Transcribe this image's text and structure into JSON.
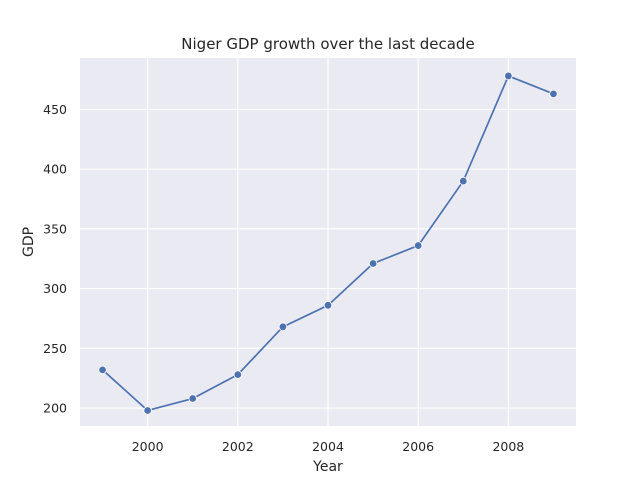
{
  "chart_data": {
    "type": "line",
    "title": "Niger GDP growth over the last decade",
    "xlabel": "Year",
    "ylabel": "GDP",
    "x": [
      1999,
      2000,
      2001,
      2002,
      2003,
      2004,
      2005,
      2006,
      2007,
      2008,
      2009
    ],
    "series": [
      {
        "values": [
          232,
          198,
          208,
          228,
          268,
          286,
          321,
          336,
          390,
          478,
          463
        ]
      }
    ],
    "xlim": [
      1998.5,
      2009.5
    ],
    "ylim": [
      185,
      493
    ],
    "xticks": [
      2000,
      2002,
      2004,
      2006,
      2008
    ],
    "yticks": [
      200,
      250,
      300,
      350,
      400,
      450
    ],
    "grid": true,
    "legend": "none",
    "colors": {
      "plot_background": "#eaeaf2",
      "grid": "#ffffff",
      "line": "#4c72b0",
      "text": "#262626"
    }
  }
}
